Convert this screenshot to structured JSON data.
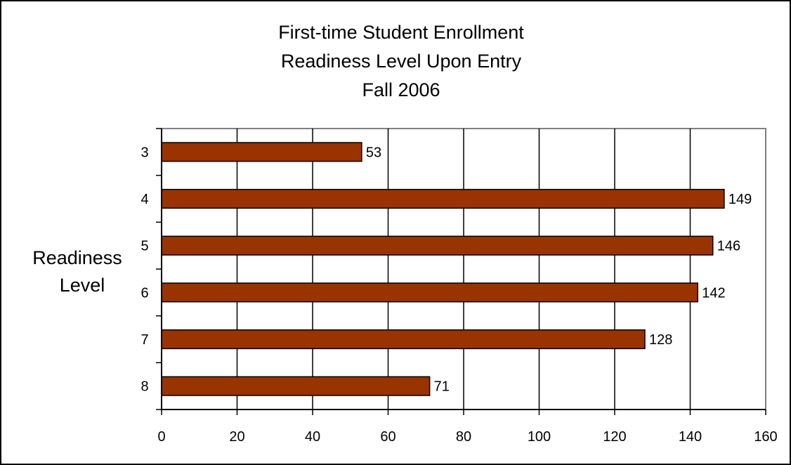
{
  "chart_data": {
    "type": "bar",
    "orientation": "horizontal",
    "title": [
      "First-time Student Enrollment",
      "Readiness Level Upon Entry",
      "Fall 2006"
    ],
    "ylabel": [
      "Readiness",
      "Level"
    ],
    "xlabel": "",
    "categories": [
      "3",
      "4",
      "5",
      "6",
      "7",
      "8"
    ],
    "values": [
      53,
      149,
      146,
      142,
      128,
      71
    ],
    "xlim": [
      0,
      160
    ],
    "xticks": [
      0,
      20,
      40,
      60,
      80,
      100,
      120,
      140,
      160
    ],
    "grid": "vertical",
    "legend": "none",
    "bar_color": "#993300",
    "bar_edge_color": "#000000"
  }
}
